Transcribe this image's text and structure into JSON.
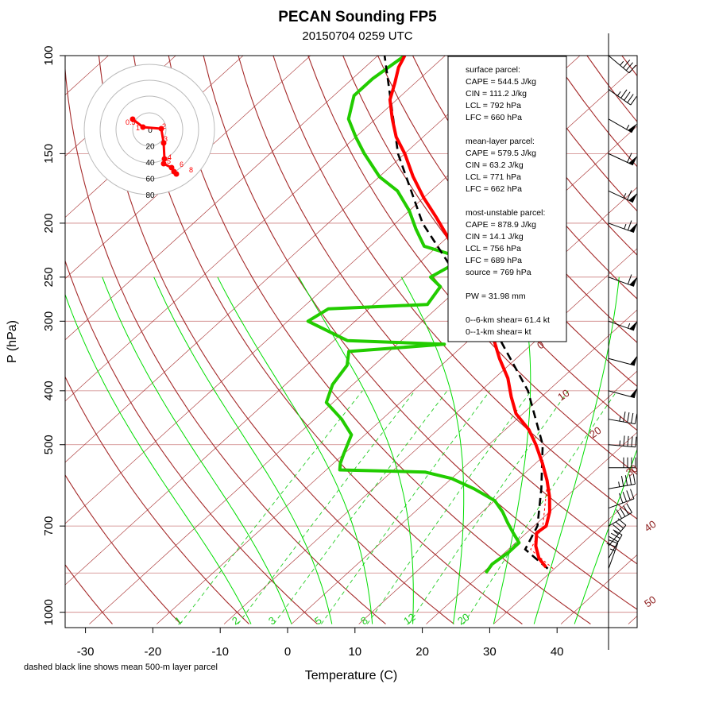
{
  "chart_data": {
    "type": "skew-t",
    "title": "PECAN Sounding FP5",
    "subtitle": "20150704 0259 UTC",
    "xlabel": "Temperature (C)",
    "ylabel": "P (hPa)",
    "footnote": "dashed black line shows mean 500-m layer parcel",
    "x_ticks": [
      "-30",
      "-20",
      "-10",
      "0",
      "10",
      "20",
      "30",
      "40"
    ],
    "y_ticks": [
      "100",
      "150",
      "200",
      "250",
      "300",
      "400",
      "500",
      "700",
      "1000"
    ],
    "mixing_ratio_labels": [
      "1",
      "2",
      "3",
      "5",
      "8",
      "12",
      "20"
    ],
    "dry_adiabat_labels": [
      "0",
      "10",
      "20",
      "30",
      "40",
      "50"
    ],
    "colors": {
      "temperature": "#ff0000",
      "dewpoint": "#22cc00",
      "parcel": "#000000",
      "isotherm": "#a52a2a",
      "isobar": "#cd8080",
      "mixing_ratio": "#22cc22",
      "moist_adiabat": "#00dd00"
    },
    "stats": {
      "surface_header": "surface parcel:",
      "surface_lines": [
        "CAPE = 544.5 J/kg",
        "CIN = 111.2 J/kg",
        "LCL = 792 hPa",
        "LFC = 660 hPa"
      ],
      "mean_header": "mean-layer parcel:",
      "mean_lines": [
        "CAPE = 579.5 J/kg",
        "CIN = 63.2 J/kg",
        "LCL = 771 hPa",
        "LFC = 662 hPa"
      ],
      "mu_header": "most-unstable parcel:",
      "mu_lines": [
        "CAPE = 878.9 J/kg",
        "CIN = 14.1 J/kg",
        "LCL = 756 hPa",
        "LFC = 689 hPa",
        "source = 769 hPa"
      ],
      "pw": "PW =  31.98 mm",
      "shear_6km": "0--6-km shear= 61.4 kt",
      "shear_1km": "0--1-km shear=  kt"
    },
    "hodograph": {
      "ring_labels": [
        "0",
        "20",
        "40",
        "60",
        "80"
      ],
      "point_labels": [
        "0.5",
        "1",
        "2",
        "3",
        "4",
        "5",
        "6",
        "8"
      ]
    },
    "temperature_profile": [
      {
        "p": 830,
        "t": 28.5
      },
      {
        "p": 800,
        "t": 26
      },
      {
        "p": 760,
        "t": 23.5
      },
      {
        "p": 720,
        "t": 21.5
      },
      {
        "p": 700,
        "t": 21.8
      },
      {
        "p": 660,
        "t": 20
      },
      {
        "p": 620,
        "t": 17.5
      },
      {
        "p": 580,
        "t": 14.5
      },
      {
        "p": 540,
        "t": 11
      },
      {
        "p": 500,
        "t": 7
      },
      {
        "p": 470,
        "t": 3.5
      },
      {
        "p": 440,
        "t": -1
      },
      {
        "p": 410,
        "t": -4.5
      },
      {
        "p": 380,
        "t": -8
      },
      {
        "p": 350,
        "t": -12.5
      },
      {
        "p": 320,
        "t": -17
      },
      {
        "p": 300,
        "t": -21
      },
      {
        "p": 280,
        "t": -24.5
      },
      {
        "p": 260,
        "t": -28.5
      },
      {
        "p": 240,
        "t": -33
      },
      {
        "p": 225,
        "t": -36.5
      },
      {
        "p": 210,
        "t": -40.5
      },
      {
        "p": 195,
        "t": -45
      },
      {
        "p": 180,
        "t": -50
      },
      {
        "p": 165,
        "t": -55
      },
      {
        "p": 150,
        "t": -60
      },
      {
        "p": 140,
        "t": -64
      },
      {
        "p": 130,
        "t": -67.5
      },
      {
        "p": 120,
        "t": -71
      },
      {
        "p": 112,
        "t": -73
      },
      {
        "p": 105,
        "t": -75
      },
      {
        "p": 100,
        "t": -76
      }
    ],
    "dewpoint_profile": [
      {
        "p": 850,
        "t": 20.5
      },
      {
        "p": 820,
        "t": 20
      },
      {
        "p": 780,
        "t": 20.5
      },
      {
        "p": 750,
        "t": 20.5
      },
      {
        "p": 720,
        "t": 18
      },
      {
        "p": 690,
        "t": 15.5
      },
      {
        "p": 660,
        "t": 13
      },
      {
        "p": 630,
        "t": 10
      },
      {
        "p": 600,
        "t": 5
      },
      {
        "p": 575,
        "t": 0
      },
      {
        "p": 560,
        "t": -5
      },
      {
        "p": 555,
        "t": -18
      },
      {
        "p": 540,
        "t": -19
      },
      {
        "p": 520,
        "t": -20
      },
      {
        "p": 480,
        "t": -22
      },
      {
        "p": 450,
        "t": -26
      },
      {
        "p": 420,
        "t": -31
      },
      {
        "p": 390,
        "t": -33
      },
      {
        "p": 360,
        "t": -34
      },
      {
        "p": 340,
        "t": -36
      },
      {
        "p": 330,
        "t": -23
      },
      {
        "p": 325,
        "t": -38
      },
      {
        "p": 300,
        "t": -47
      },
      {
        "p": 285,
        "t": -46
      },
      {
        "p": 280,
        "t": -32
      },
      {
        "p": 260,
        "t": -33
      },
      {
        "p": 250,
        "t": -36
      },
      {
        "p": 240,
        "t": -35
      },
      {
        "p": 230,
        "t": -35
      },
      {
        "p": 220,
        "t": -42
      },
      {
        "p": 205,
        "t": -46
      },
      {
        "p": 190,
        "t": -50
      },
      {
        "p": 175,
        "t": -55
      },
      {
        "p": 165,
        "t": -60
      },
      {
        "p": 150,
        "t": -66
      },
      {
        "p": 140,
        "t": -70
      },
      {
        "p": 130,
        "t": -74
      },
      {
        "p": 118,
        "t": -77
      },
      {
        "p": 110,
        "t": -77
      },
      {
        "p": 100,
        "t": -76
      }
    ],
    "parcel_profile": [
      {
        "p": 835,
        "t": 29
      },
      {
        "p": 800,
        "t": 25.5
      },
      {
        "p": 771,
        "t": 22.5
      },
      {
        "p": 700,
        "t": 20.5
      },
      {
        "p": 600,
        "t": 15
      },
      {
        "p": 500,
        "t": 8
      },
      {
        "p": 400,
        "t": -3
      },
      {
        "p": 300,
        "t": -20
      },
      {
        "p": 250,
        "t": -32
      },
      {
        "p": 200,
        "t": -46
      },
      {
        "p": 150,
        "t": -61
      },
      {
        "p": 100,
        "t": -79
      }
    ],
    "wind_profile": [
      {
        "p": 835,
        "spd": 25,
        "dir": 200
      },
      {
        "p": 800,
        "spd": 30,
        "dir": 210
      },
      {
        "p": 760,
        "spd": 35,
        "dir": 220
      },
      {
        "p": 700,
        "spd": 40,
        "dir": 240
      },
      {
        "p": 650,
        "spd": 40,
        "dir": 250
      },
      {
        "p": 600,
        "spd": 45,
        "dir": 260
      },
      {
        "p": 550,
        "spd": 40,
        "dir": 270
      },
      {
        "p": 500,
        "spd": 45,
        "dir": 275
      },
      {
        "p": 450,
        "spd": 45,
        "dir": 280
      },
      {
        "p": 400,
        "spd": 50,
        "dir": 285
      },
      {
        "p": 350,
        "spd": 50,
        "dir": 285
      },
      {
        "p": 300,
        "spd": 55,
        "dir": 290
      },
      {
        "p": 250,
        "spd": 60,
        "dir": 290
      },
      {
        "p": 200,
        "spd": 65,
        "dir": 290
      },
      {
        "p": 175,
        "spd": 65,
        "dir": 295
      },
      {
        "p": 150,
        "spd": 60,
        "dir": 295
      },
      {
        "p": 130,
        "spd": 55,
        "dir": 300
      },
      {
        "p": 115,
        "spd": 45,
        "dir": 305
      },
      {
        "p": 100,
        "spd": 35,
        "dir": 310
      }
    ]
  }
}
